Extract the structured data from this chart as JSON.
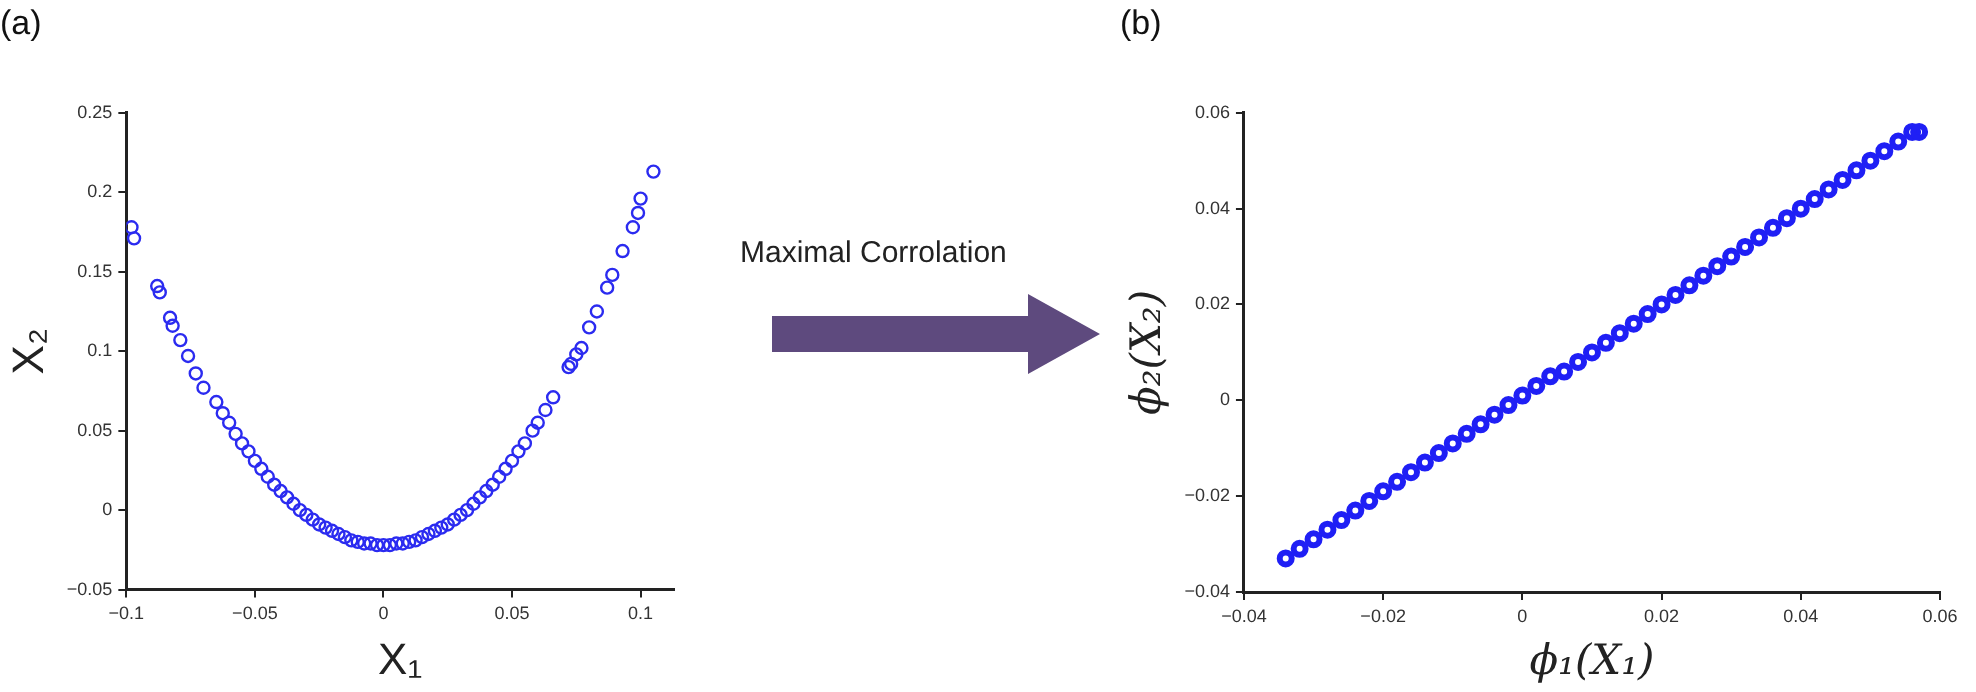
{
  "chart_data": [
    {
      "type": "scatter",
      "title": "(a)",
      "xlabel": "X₁",
      "ylabel": "X₂",
      "annotations": [
        "Maximal Corrolation"
      ],
      "marker": "circle",
      "grid": false,
      "xlim": [
        -0.1,
        0.113
      ],
      "ylim": [
        -0.05,
        0.25
      ],
      "xticks": [
        -0.1,
        -0.05,
        0,
        0.05,
        0.1
      ],
      "yticks": [
        -0.05,
        0,
        0.05,
        0.1,
        0.15,
        0.2,
        0.25
      ],
      "series": [
        {
          "color": "#2b2bf0",
          "x": [
            -0.098,
            -0.097,
            -0.088,
            -0.087,
            -0.083,
            -0.082,
            -0.079,
            -0.076,
            -0.073,
            -0.07,
            -0.065,
            -0.0625,
            -0.06,
            -0.0575,
            -0.055,
            -0.0525,
            -0.05,
            -0.0475,
            -0.045,
            -0.0425,
            -0.04,
            -0.0375,
            -0.035,
            -0.0325,
            -0.03,
            -0.0275,
            -0.025,
            -0.0225,
            -0.02,
            -0.0175,
            -0.015,
            -0.0125,
            -0.01,
            -0.0075,
            -0.005,
            -0.0025,
            0,
            0.0025,
            0.005,
            0.0075,
            0.01,
            0.0125,
            0.015,
            0.0175,
            0.02,
            0.0225,
            0.025,
            0.0275,
            0.03,
            0.0325,
            0.035,
            0.0375,
            0.04,
            0.0425,
            0.045,
            0.0475,
            0.05,
            0.0525,
            0.055,
            0.058,
            0.06,
            0.063,
            0.066,
            0.072,
            0.073,
            0.075,
            0.077,
            0.08,
            0.083,
            0.087,
            0.089,
            0.093,
            0.097,
            0.099,
            0.1,
            0.105
          ],
          "values": [
            0.178,
            0.171,
            0.141,
            0.137,
            0.121,
            0.116,
            0.107,
            0.097,
            0.086,
            0.077,
            0.068,
            0.061,
            0.055,
            0.048,
            0.042,
            0.037,
            0.031,
            0.026,
            0.021,
            0.016,
            0.012,
            0.008,
            0.004,
            0,
            -0.003,
            -0.006,
            -0.009,
            -0.011,
            -0.013,
            -0.015,
            -0.017,
            -0.019,
            -0.02,
            -0.021,
            -0.021,
            -0.022,
            -0.022,
            -0.022,
            -0.021,
            -0.021,
            -0.02,
            -0.019,
            -0.017,
            -0.015,
            -0.013,
            -0.011,
            -0.009,
            -0.006,
            -0.003,
            0,
            0.004,
            0.008,
            0.012,
            0.016,
            0.021,
            0.026,
            0.031,
            0.037,
            0.042,
            0.05,
            0.055,
            0.063,
            0.071,
            0.09,
            0.092,
            0.098,
            0.102,
            0.115,
            0.125,
            0.14,
            0.148,
            0.163,
            0.178,
            0.187,
            0.196,
            0.213
          ]
        }
      ]
    },
    {
      "type": "scatter",
      "title": "(b)",
      "xlabel": "ϕ₁(X₁)",
      "ylabel": "ϕ₂(X₂)",
      "marker": "circle",
      "grid": false,
      "xlim": [
        -0.04,
        0.06
      ],
      "ylim": [
        -0.04,
        0.06
      ],
      "xticks": [
        -0.04,
        -0.02,
        0,
        0.02,
        0.04,
        0.06
      ],
      "yticks": [
        -0.04,
        -0.02,
        0,
        0.02,
        0.04,
        0.06
      ],
      "series": [
        {
          "color": "#1f1ff5",
          "x": [
            -0.034,
            -0.032,
            -0.03,
            -0.028,
            -0.026,
            -0.024,
            -0.022,
            -0.02,
            -0.018,
            -0.016,
            -0.014,
            -0.012,
            -0.01,
            -0.008,
            -0.006,
            -0.004,
            -0.002,
            0,
            0.002,
            0.004,
            0.006,
            0.008,
            0.01,
            0.012,
            0.014,
            0.016,
            0.018,
            0.02,
            0.022,
            0.024,
            0.026,
            0.028,
            0.03,
            0.032,
            0.034,
            0.036,
            0.038,
            0.04,
            0.042,
            0.044,
            0.046,
            0.048,
            0.05,
            0.052,
            0.054,
            0.056,
            0.057
          ],
          "values": [
            -0.033,
            -0.031,
            -0.029,
            -0.027,
            -0.025,
            -0.023,
            -0.021,
            -0.019,
            -0.017,
            -0.015,
            -0.013,
            -0.011,
            -0.009,
            -0.007,
            -0.005,
            -0.003,
            -0.001,
            0.001,
            0.003,
            0.005,
            0.006,
            0.008,
            0.01,
            0.012,
            0.014,
            0.016,
            0.018,
            0.02,
            0.022,
            0.024,
            0.026,
            0.028,
            0.03,
            0.032,
            0.034,
            0.036,
            0.038,
            0.04,
            0.042,
            0.044,
            0.046,
            0.048,
            0.05,
            0.052,
            0.054,
            0.056,
            0.056
          ]
        }
      ]
    }
  ]
}
